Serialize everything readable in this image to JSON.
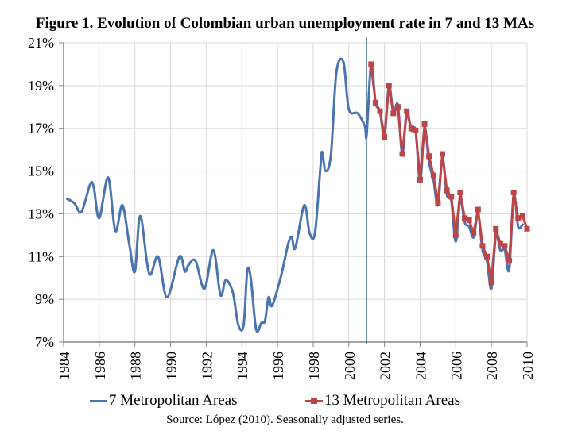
{
  "chart_data": {
    "type": "line",
    "title": "Figure 1. Evolution of Colombian urban unemployment rate in 7 and 13 MAs",
    "xlabel": "",
    "ylabel": "",
    "xlim": [
      1984,
      2010
    ],
    "ylim": [
      7,
      21
    ],
    "x_ticks": [
      "1984",
      "1986",
      "1988",
      "1990",
      "1992",
      "1994",
      "1996",
      "1998",
      "2000",
      "2002",
      "2004",
      "2006",
      "2008",
      "2010"
    ],
    "x_tick_values": [
      1984,
      1986,
      1988,
      1990,
      1992,
      1994,
      1996,
      1998,
      2000,
      2002,
      2004,
      2006,
      2008,
      2010
    ],
    "y_ticks": [
      "7%",
      "9%",
      "11%",
      "13%",
      "15%",
      "17%",
      "19%",
      "21%"
    ],
    "y_tick_values": [
      7,
      9,
      11,
      13,
      15,
      17,
      19,
      21
    ],
    "grid": true,
    "reference_line_x": 2001.0,
    "legend_position": "bottom",
    "source_note": "Source: López (2010). Seasonally adjusted series.",
    "series": [
      {
        "name": "7 Metropolitan Areas",
        "color": "#4a74b0",
        "marker": "none",
        "smooth": true,
        "x": [
          1984.2,
          1984.6,
          1985.0,
          1985.5,
          1985.7,
          1986.0,
          1986.5,
          1986.9,
          1987.3,
          1987.7,
          1988.0,
          1988.3,
          1988.8,
          1989.3,
          1989.8,
          1990.5,
          1990.8,
          1991.0,
          1991.4,
          1991.9,
          1992.4,
          1992.8,
          1993.1,
          1993.5,
          1993.8,
          1994.1,
          1994.3,
          1994.5,
          1994.8,
          1995.1,
          1995.3,
          1995.5,
          1995.7,
          1996.2,
          1996.6,
          1996.8,
          1997.0,
          1997.5,
          1997.8,
          1998.1,
          1998.4,
          1998.5,
          1998.7,
          1999.0,
          1999.3,
          1999.7,
          2000.0,
          2000.5,
          2000.9,
          2001.0,
          2001.25,
          2001.5,
          2001.75,
          2002.0,
          2002.25,
          2002.5,
          2002.75,
          2003.0,
          2003.25,
          2003.5,
          2003.75,
          2004.0,
          2004.25,
          2004.5,
          2004.75,
          2005.0,
          2005.25,
          2005.5,
          2005.75,
          2006.0,
          2006.25,
          2006.5,
          2006.75,
          2007.0,
          2007.25,
          2007.5,
          2007.75,
          2008.0,
          2008.25,
          2008.5,
          2008.75,
          2009.0,
          2009.25,
          2009.5,
          2009.75
        ],
        "values": [
          13.7,
          13.5,
          13.1,
          14.4,
          14.2,
          12.8,
          14.7,
          12.2,
          13.4,
          11.5,
          10.3,
          12.9,
          10.2,
          11.0,
          9.1,
          11.0,
          10.3,
          10.6,
          10.8,
          9.5,
          11.3,
          9.2,
          9.9,
          9.3,
          7.8,
          7.8,
          10.3,
          10.0,
          7.6,
          7.9,
          8.0,
          9.1,
          8.7,
          10.1,
          11.6,
          11.9,
          11.4,
          13.4,
          12.1,
          12.1,
          15.1,
          15.9,
          15.0,
          15.8,
          19.6,
          20.1,
          17.9,
          17.7,
          17.1,
          16.7,
          20.0,
          18.2,
          17.8,
          16.6,
          19.0,
          17.7,
          18.1,
          15.8,
          17.8,
          16.9,
          16.9,
          14.5,
          17.0,
          15.4,
          14.6,
          13.4,
          15.6,
          13.9,
          13.6,
          11.7,
          13.7,
          12.6,
          12.4,
          11.9,
          13.0,
          11.3,
          10.8,
          9.5,
          12.0,
          11.3,
          11.3,
          10.4,
          13.9,
          12.4,
          12.5
        ]
      },
      {
        "name": "13 Metropolitan Areas",
        "color": "#bd4447",
        "marker": "square",
        "smooth": false,
        "x": [
          2001.25,
          2001.5,
          2001.75,
          2002.0,
          2002.25,
          2002.5,
          2002.75,
          2003.0,
          2003.25,
          2003.5,
          2003.75,
          2004.0,
          2004.25,
          2004.5,
          2004.75,
          2005.0,
          2005.25,
          2005.5,
          2005.75,
          2006.0,
          2006.25,
          2006.5,
          2006.75,
          2007.0,
          2007.25,
          2007.5,
          2007.75,
          2008.0,
          2008.25,
          2008.5,
          2008.75,
          2009.0,
          2009.25,
          2009.5,
          2009.75,
          2010.0
        ],
        "values": [
          20.0,
          18.2,
          17.8,
          16.6,
          19.0,
          17.7,
          18.0,
          15.8,
          17.8,
          17.0,
          16.9,
          14.6,
          17.2,
          15.7,
          14.8,
          13.5,
          15.8,
          14.1,
          13.8,
          12.0,
          14.0,
          12.8,
          12.7,
          12.1,
          13.2,
          11.5,
          11.0,
          9.8,
          12.3,
          11.6,
          11.5,
          10.8,
          14.0,
          12.8,
          12.9,
          12.3
        ]
      }
    ]
  },
  "legend": {
    "items": [
      "7 Metropolitan Areas",
      "13 Metropolitan Areas"
    ]
  }
}
